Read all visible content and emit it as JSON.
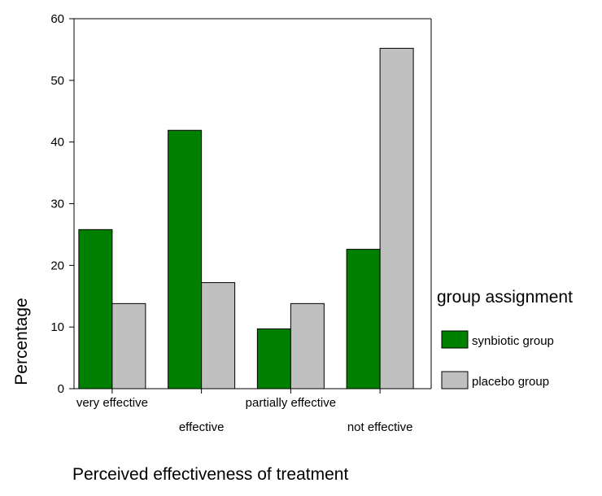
{
  "chart_data": {
    "type": "bar",
    "title": "",
    "xlabel": "Perceived effectiveness of treatment",
    "ylabel": "Percentage",
    "ylim": [
      0,
      60
    ],
    "yticks": [
      0,
      10,
      20,
      30,
      40,
      50,
      60
    ],
    "grid": false,
    "categories": [
      "very effective",
      "effective",
      "partially effective",
      "not effective"
    ],
    "series": [
      {
        "name": "synbiotic group",
        "color": "#008000",
        "values": [
          25.8,
          41.9,
          9.7,
          22.6
        ]
      },
      {
        "name": "placebo group",
        "color": "#c0c0c0",
        "values": [
          13.8,
          17.2,
          13.8,
          55.2
        ]
      }
    ],
    "legend": {
      "title": "group assignment",
      "placement": "right"
    }
  }
}
